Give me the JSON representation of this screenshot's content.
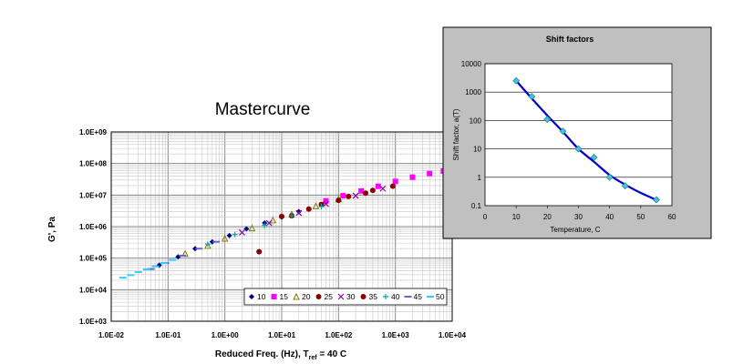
{
  "chart_data": [
    {
      "type": "scatter",
      "title": "Mastercurve",
      "xlabel_main": "Reduced Freq. (Hz), T",
      "xlabel_sub": "ref",
      "xlabel_tail": " = 40 C",
      "ylabel": "G', Pa",
      "x_scale": "log",
      "y_scale": "log",
      "xlim": [
        0.01,
        10000
      ],
      "ylim": [
        1000,
        1000000000
      ],
      "x_ticks": [
        "1.0E-02",
        "1.0E-01",
        "1.0E+00",
        "1.0E+01",
        "1.0E+02",
        "1.0E+03",
        "1.0E+04"
      ],
      "y_ticks": [
        "1.0E+03",
        "1.0E+04",
        "1.0E+05",
        "1.0E+06",
        "1.0E+07",
        "1.0E+08",
        "1.0E+09"
      ],
      "grid": true,
      "legend_position": "bottom-right",
      "series": [
        {
          "name": "10",
          "marker": "diamond",
          "color": "#000080",
          "x": [
            0.07,
            0.15,
            0.3,
            0.6,
            1.2,
            2.4,
            5,
            10,
            20
          ],
          "y": [
            60000,
            110000,
            200000,
            330000,
            520000,
            850000,
            1300000,
            2000000,
            3000000
          ]
        },
        {
          "name": "15",
          "marker": "square",
          "color": "#ff00ff",
          "x": [
            60,
            120,
            250,
            500,
            1000,
            2000,
            4000,
            7000
          ],
          "y": [
            6500000,
            9500000,
            13500000,
            19000000,
            27000000,
            37000000,
            48000000,
            58000000
          ]
        },
        {
          "name": "20",
          "marker": "triangle",
          "color": "#808000",
          "x": [
            0.2,
            0.5,
            1.0,
            3.0,
            7.0,
            15,
            40,
            100
          ],
          "y": [
            140000,
            250000,
            420000,
            900000,
            1600000,
            2500000,
            4500000,
            7500000
          ]
        },
        {
          "name": "25",
          "marker": "circle",
          "color": "#8b0000",
          "x": [
            4,
            15,
            50,
            150,
            400
          ],
          "y": [
            160000,
            2200000,
            5000000,
            9000000,
            14000000
          ]
        },
        {
          "name": "30",
          "marker": "x",
          "color": "#8800aa",
          "x": [
            2,
            6,
            20,
            60,
            200,
            600
          ],
          "y": [
            650000,
            1300000,
            2700000,
            5200000,
            9500000,
            16000000
          ]
        },
        {
          "name": "35",
          "marker": "circle",
          "color": "#8b0000",
          "x": [
            10,
            30,
            100,
            300,
            900
          ],
          "y": [
            2100000,
            3600000,
            6800000,
            11500000,
            19000000
          ]
        },
        {
          "name": "40",
          "marker": "plus",
          "color": "#00aaaa",
          "x": [
            0.5,
            1.5,
            5,
            15,
            50
          ],
          "y": [
            280000,
            560000,
            1100000,
            2200000,
            4300000
          ]
        },
        {
          "name": "45",
          "marker": "dash",
          "color": "#6666cc",
          "x": [
            0.05,
            0.09,
            0.18,
            0.35,
            0.7
          ],
          "y": [
            45000,
            70000,
            120000,
            200000,
            330000
          ]
        },
        {
          "name": "50",
          "marker": "dash",
          "color": "#33ccff",
          "x": [
            0.016,
            0.022,
            0.03,
            0.042,
            0.06,
            0.085,
            0.12
          ],
          "y": [
            24000,
            29000,
            36000,
            44000,
            55000,
            70000,
            88000
          ]
        }
      ]
    },
    {
      "type": "scatter",
      "title": "Shift factors",
      "xlabel": "Temperature, C",
      "ylabel": "Shift factor, a(T)",
      "x_scale": "linear",
      "y_scale": "log",
      "xlim": [
        0,
        60
      ],
      "ylim": [
        0.1,
        10000
      ],
      "x_ticks": [
        "0",
        "10",
        "20",
        "30",
        "40",
        "50",
        "60"
      ],
      "y_ticks": [
        "0.1",
        "1",
        "10",
        "100",
        "1000",
        "10000"
      ],
      "grid": true,
      "points": {
        "x": [
          10,
          15,
          20,
          25,
          30,
          35,
          40,
          45,
          55
        ],
        "y": [
          2500,
          700,
          110,
          42,
          10,
          5,
          1,
          0.5,
          0.16
        ]
      },
      "fit_curve": {
        "x": [
          10,
          15,
          20,
          25,
          30,
          35,
          40,
          45,
          50,
          55
        ],
        "y": [
          2500,
          600,
          150,
          40,
          10,
          3.5,
          1.2,
          0.55,
          0.28,
          0.16
        ]
      },
      "point_color": "#33ccdd",
      "curve_color": "#0000cc",
      "panel_background": "#c0c0c0"
    }
  ]
}
